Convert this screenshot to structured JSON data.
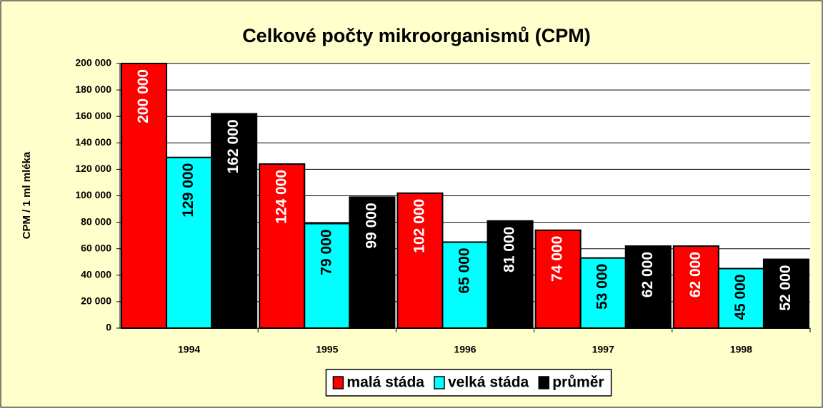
{
  "chart_data": {
    "type": "bar",
    "title": "Celkové počty mikroorganismů (CPM)",
    "y_label": "CPM / 1 ml mléka",
    "categories": [
      "1994",
      "1995",
      "1996",
      "1997",
      "1998"
    ],
    "series": [
      {
        "name": "malá stáda",
        "color": "#ff0000",
        "values": [
          200000,
          124000,
          102000,
          74000,
          62000
        ],
        "value_labels": [
          "200 000",
          "124 000",
          "102 000",
          "74 000",
          "62 000"
        ]
      },
      {
        "name": "velká stáda",
        "color": "#00ffff",
        "values": [
          129000,
          79000,
          65000,
          53000,
          45000
        ],
        "value_labels": [
          "129 000",
          "79 000",
          "65 000",
          "53 000",
          "45 000"
        ]
      },
      {
        "name": "průměr",
        "color": "#000000",
        "values": [
          162000,
          99000,
          81000,
          62000,
          52000
        ],
        "value_labels": [
          "162 000",
          "99 000",
          "81 000",
          "62 000",
          "52 000"
        ]
      }
    ],
    "ylim": [
      0,
      200000
    ],
    "yticks": [
      0,
      {
        "value": 20000,
        "label": "20 000"
      },
      {
        "value": 40000,
        "label": "40 000"
      },
      {
        "value": 60000,
        "label": "60 000"
      },
      {
        "value": 80000,
        "label": "80 000"
      },
      {
        "value": 100000,
        "label": "100 000"
      },
      {
        "value": 120000,
        "label": "120 000"
      },
      {
        "value": 140000,
        "label": "140 000"
      },
      {
        "value": 160000,
        "label": "160 000"
      },
      {
        "value": 180000,
        "label": "180 000"
      },
      {
        "value": 200000,
        "label": "200 000"
      }
    ],
    "grid": true,
    "legend": "bottom"
  }
}
